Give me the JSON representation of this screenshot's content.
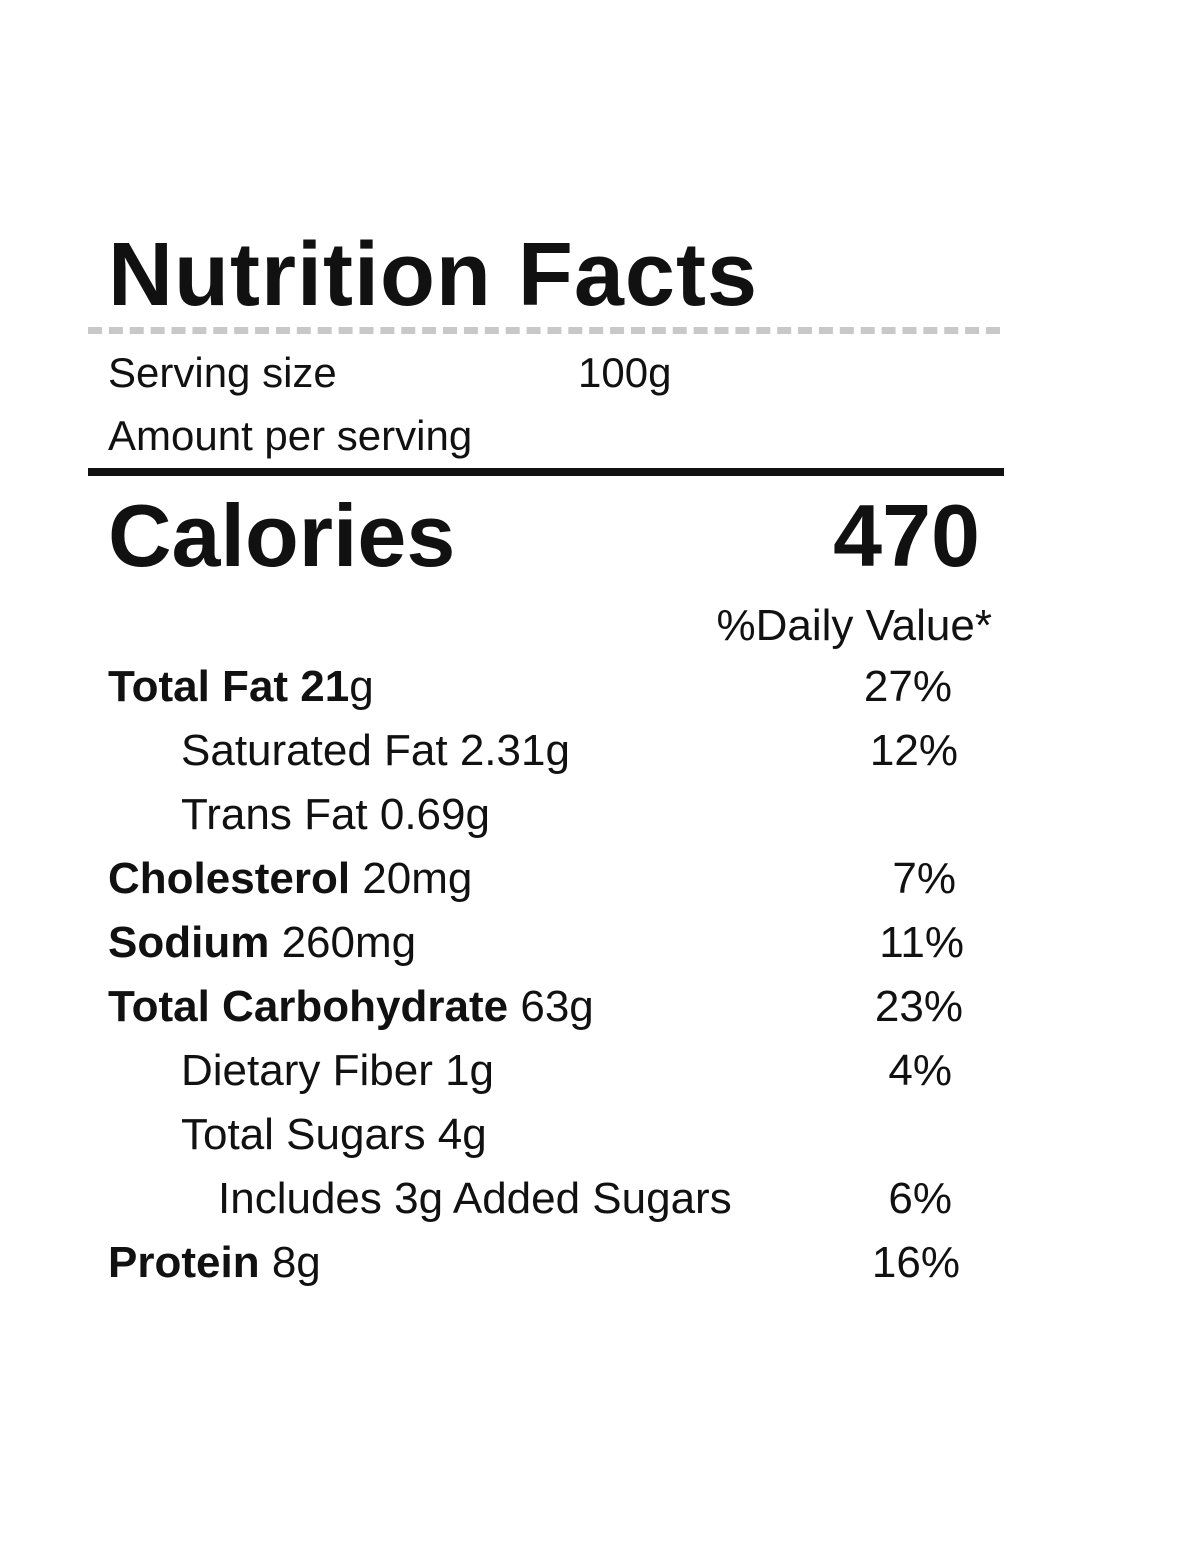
{
  "title": "Nutrition Facts",
  "serving": {
    "label": "Serving size",
    "value": "100g"
  },
  "amount_per_serving": "Amount per serving",
  "calories": {
    "label": "Calories",
    "value": "470"
  },
  "daily_value_header": "%Daily Value*",
  "nutrients": [
    {
      "name": "Total Fat",
      "amount": "21",
      "unit": "g",
      "dv": "27%"
    },
    {
      "name": "Saturated Fat 2.31g",
      "amount": "",
      "unit": "",
      "dv": "12%"
    },
    {
      "name": "Trans Fat 0.69g",
      "amount": "",
      "unit": "",
      "dv": ""
    },
    {
      "name": "Cholesterol",
      "amount": "20mg",
      "unit": "",
      "dv": "7%"
    },
    {
      "name": "Sodium",
      "amount": "260mg",
      "unit": "",
      "dv": "11%"
    },
    {
      "name": "Total Carbohydrate",
      "amount": "63g",
      "unit": "",
      "dv": "23%"
    },
    {
      "name": "Dietary Fiber 1g",
      "amount": "",
      "unit": "",
      "dv": "4%"
    },
    {
      "name": "Total Sugars 4g",
      "amount": "",
      "unit": "",
      "dv": ""
    },
    {
      "name": "Includes 3g Added Sugars",
      "amount": "",
      "unit": "",
      "dv": "6%"
    },
    {
      "name": "Protein",
      "amount": "8g",
      "unit": "",
      "dv": "16%"
    }
  ]
}
